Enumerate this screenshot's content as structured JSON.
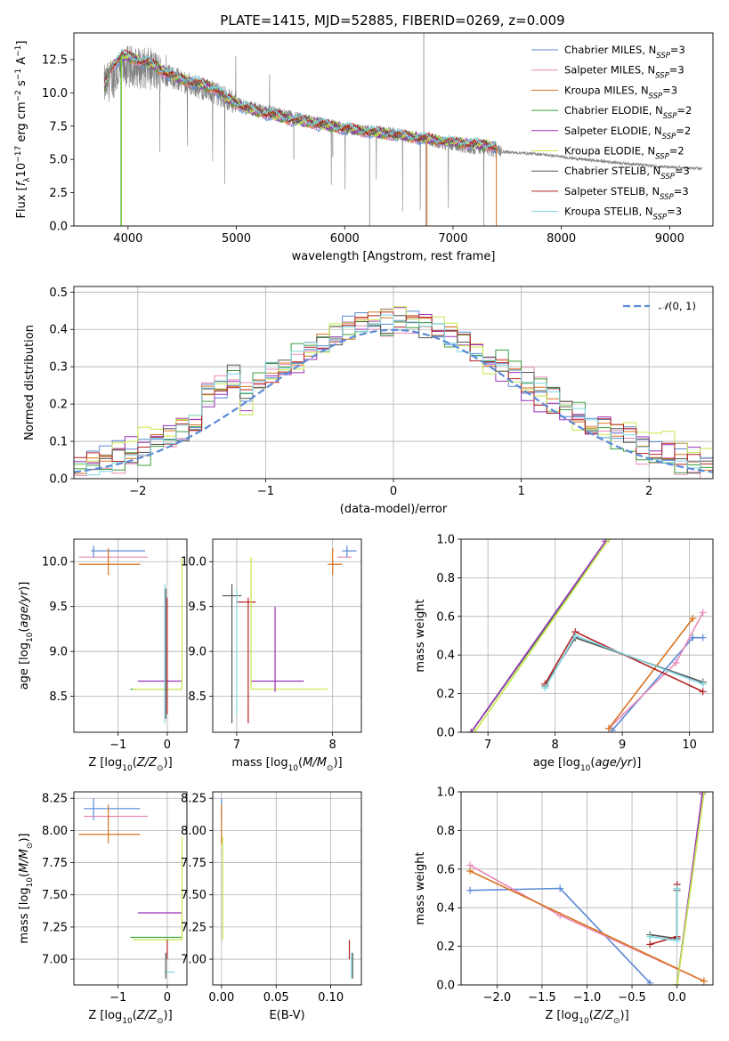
{
  "title": "PLATE=1415, MJD=52885, FIBERID=0269, z=0.009",
  "colors": {
    "Chabrier MILES": "#5b8bd6",
    "Salpeter MILES": "#e98ab8",
    "Kroupa MILES": "#d9731f",
    "Chabrier ELODIE": "#3f9f3f",
    "Salpeter ELODIE": "#9b30b8",
    "Kroupa ELODIE": "#c6e84a",
    "Chabrier STELIB": "#555555",
    "Salpeter STELIB": "#b22222",
    "Kroupa STELIB": "#7fd6e0",
    "data": "#808080",
    "normal": "#5b8bd6",
    "grid": "#b0b0b0"
  },
  "chart_data": [
    {
      "type": "line",
      "xlabel": "wavelength [Angstrom, rest frame]",
      "ylabel": "Flux [f_λ 10⁻¹⁷ erg cm⁻² s⁻¹ A⁻¹]",
      "ylabel_parts": {
        "pre": "Flux [",
        "f": "f",
        "sub": "λ",
        "mid": "10",
        "exp1": "−17",
        "rest": " erg cm",
        "exp2": "−2",
        "s": " s",
        "exp3": "−1",
        "A": " A",
        "exp4": "−1",
        "end": "]"
      },
      "xlim": [
        3500,
        9400
      ],
      "ylim": [
        0,
        14.5
      ],
      "xticks": [
        4000,
        5000,
        6000,
        7000,
        8000,
        9000
      ],
      "yticks": [
        0.0,
        2.5,
        5.0,
        7.5,
        10.0,
        12.5
      ],
      "legend_position": "upper-right",
      "legend": [
        {
          "model": "Chabrier MILES",
          "nssp": "3"
        },
        {
          "model": "Salpeter MILES",
          "nssp": "3"
        },
        {
          "model": "Kroupa MILES",
          "nssp": "3"
        },
        {
          "model": "Chabrier ELODIE",
          "nssp": "2"
        },
        {
          "model": "Salpeter ELODIE",
          "nssp": "2"
        },
        {
          "model": "Kroupa ELODIE",
          "nssp": "2"
        },
        {
          "model": "Chabrier STELIB",
          "nssp": "3"
        },
        {
          "model": "Salpeter STELIB",
          "nssp": "3"
        },
        {
          "model": "Kroupa STELIB",
          "nssp": "3"
        }
      ],
      "legend_label_prefix": ", N",
      "legend_label_sub": "SSP",
      "model_continuum": {
        "x": [
          3780,
          3850,
          3950,
          4050,
          4150,
          4250,
          4400,
          4600,
          4800,
          4900,
          5100,
          5300,
          5500,
          5800,
          6100,
          6400,
          6700,
          7000,
          7400
        ],
        "y": [
          10.5,
          12.0,
          12.8,
          12.6,
          12.3,
          12.0,
          11.3,
          10.8,
          10.4,
          9.6,
          8.8,
          8.4,
          8.0,
          7.6,
          7.2,
          6.9,
          6.6,
          6.3,
          6.0
        ]
      },
      "data_continuum": {
        "x": [
          3780,
          3900,
          4000,
          4200,
          4400,
          4800,
          5000,
          5500,
          6000,
          6500,
          7000,
          7400,
          7800,
          8200,
          8600,
          9000,
          9300
        ],
        "y": [
          10.5,
          11.5,
          12.0,
          11.8,
          11.2,
          10.0,
          9.2,
          8.2,
          7.3,
          6.9,
          6.1,
          5.6,
          5.4,
          5.0,
          4.7,
          4.4,
          4.3
        ]
      },
      "data_noise_region": [
        3780,
        7450
      ]
    },
    {
      "type": "step",
      "xlabel": "(data-model)/error",
      "ylabel": "Normed distribution",
      "xlim": [
        -2.5,
        2.5
      ],
      "ylim": [
        0,
        0.515
      ],
      "xticks": [
        -2,
        -1,
        0,
        1,
        2
      ],
      "yticks": [
        0.0,
        0.1,
        0.2,
        0.3,
        0.4,
        0.5
      ],
      "legend_position": "upper-right",
      "normal_label": "(0, 1)",
      "normal_label_script": "𝒩",
      "bin_width": 0.1,
      "bin_start": -2.5,
      "series": [
        {
          "name": "Chabrier MILES",
          "offset": 0.02
        },
        {
          "name": "Salpeter MILES",
          "offset": -0.015
        },
        {
          "name": "Kroupa MILES",
          "offset": 0.01
        },
        {
          "name": "Chabrier ELODIE",
          "offset": -0.02
        },
        {
          "name": "Salpeter ELODIE",
          "offset": 0.03
        },
        {
          "name": "Kroupa ELODIE",
          "offset": 0.04
        },
        {
          "name": "Chabrier STELIB",
          "offset": -0.005
        },
        {
          "name": "Salpeter STELIB",
          "offset": 0.015
        },
        {
          "name": "Kroupa STELIB",
          "offset": 0.0
        }
      ]
    },
    {
      "type": "errorbar",
      "xlabel": "Z [log₁₀(Z/Z⊙)]",
      "ylabel": "age [log₁₀(age/yr)]",
      "xlim": [
        -1.9,
        0.4
      ],
      "ylim": [
        8.1,
        10.25
      ],
      "xticks": [
        -1,
        0
      ],
      "yticks": [
        8.5,
        9.0,
        9.5,
        10.0
      ],
      "hbars": [
        {
          "y": 10.12,
          "x0": -1.55,
          "x1": -0.45,
          "c": "Chabrier MILES"
        },
        {
          "y": 10.05,
          "x0": -1.8,
          "x1": -0.4,
          "c": "Salpeter MILES"
        },
        {
          "y": 9.97,
          "x0": -1.8,
          "x1": -0.55,
          "c": "Kroupa MILES"
        },
        {
          "y": 8.67,
          "x0": -0.6,
          "x1": 0.3,
          "c": "Salpeter ELODIE"
        },
        {
          "y": 8.58,
          "x0": -0.75,
          "x1": 0.3,
          "c": "Chabrier ELODIE"
        },
        {
          "y": 8.58,
          "x0": -0.7,
          "x1": 0.3,
          "c": "Kroupa ELODIE"
        }
      ],
      "vbars": [
        {
          "x": -1.5,
          "y0": 10.05,
          "y1": 10.18,
          "c": "Chabrier MILES"
        },
        {
          "x": -1.2,
          "y0": 9.85,
          "y1": 10.15,
          "c": "Kroupa MILES"
        },
        {
          "x": -0.05,
          "y0": 8.2,
          "y1": 9.75,
          "c": "Kroupa STELIB"
        },
        {
          "x": -0.03,
          "y0": 8.25,
          "y1": 9.7,
          "c": "Chabrier STELIB"
        },
        {
          "x": 0.0,
          "y0": 8.3,
          "y1": 9.6,
          "c": "Salpeter STELIB"
        },
        {
          "x": 0.3,
          "y0": 8.58,
          "y1": 10.05,
          "c": "Kroupa ELODIE"
        }
      ]
    },
    {
      "type": "errorbar",
      "xlabel": "mass [log₁₀(M/M⊙)]",
      "ylabel": "",
      "xlim": [
        6.75,
        8.3
      ],
      "ylim": [
        8.1,
        10.25
      ],
      "xticks": [
        7,
        8
      ],
      "yticks": [
        8.5,
        9.0,
        9.5,
        10.0
      ],
      "hbars": [
        {
          "y": 9.62,
          "x0": 6.85,
          "x1": 7.05,
          "c": "Chabrier STELIB"
        },
        {
          "y": 9.55,
          "x0": 7.0,
          "x1": 7.2,
          "c": "Salpeter STELIB"
        },
        {
          "y": 8.67,
          "x0": 7.15,
          "x1": 7.7,
          "c": "Salpeter ELODIE"
        },
        {
          "y": 8.58,
          "x0": 7.15,
          "x1": 7.95,
          "c": "Kroupa ELODIE"
        },
        {
          "y": 10.12,
          "x0": 8.1,
          "x1": 8.25,
          "c": "Chabrier MILES"
        },
        {
          "y": 10.05,
          "x0": 8.05,
          "x1": 8.2,
          "c": "Salpeter MILES"
        },
        {
          "y": 9.97,
          "x0": 7.95,
          "x1": 8.1,
          "c": "Kroupa MILES"
        }
      ],
      "vbars": [
        {
          "x": 6.95,
          "y0": 8.2,
          "y1": 9.75,
          "c": "Chabrier STELIB"
        },
        {
          "x": 7.0,
          "y0": 8.3,
          "y1": 9.7,
          "c": "Kroupa STELIB"
        },
        {
          "x": 7.12,
          "y0": 8.2,
          "y1": 9.6,
          "c": "Salpeter STELIB"
        },
        {
          "x": 7.15,
          "y0": 8.58,
          "y1": 10.05,
          "c": "Kroupa ELODIE"
        },
        {
          "x": 7.4,
          "y0": 8.55,
          "y1": 9.5,
          "c": "Salpeter ELODIE"
        },
        {
          "x": 8.0,
          "y0": 9.85,
          "y1": 10.15,
          "c": "Kroupa MILES"
        },
        {
          "x": 8.15,
          "y0": 10.05,
          "y1": 10.18,
          "c": "Chabrier MILES"
        }
      ]
    },
    {
      "type": "line",
      "xlabel": "age [log₁₀(age/yr)]",
      "ylabel": "mass weight",
      "xlim": [
        6.6,
        10.35
      ],
      "ylim": [
        0,
        1.0
      ],
      "xticks": [
        7,
        8,
        9,
        10
      ],
      "yticks": [
        0.0,
        0.2,
        0.4,
        0.6,
        0.8,
        1.0
      ],
      "series": [
        {
          "name": "Chabrier MILES",
          "x": [
            8.85,
            10.05,
            10.2
          ],
          "y": [
            0.01,
            0.49,
            0.49
          ]
        },
        {
          "name": "Salpeter MILES",
          "x": [
            8.8,
            9.8,
            10.2
          ],
          "y": [
            0.02,
            0.36,
            0.62
          ]
        },
        {
          "name": "Kroupa MILES",
          "x": [
            8.8,
            10.05
          ],
          "y": [
            0.02,
            0.59
          ]
        },
        {
          "name": "Chabrier ELODIE",
          "x": [
            6.75,
            8.8
          ],
          "y": [
            0.0,
            1.0
          ]
        },
        {
          "name": "Salpeter ELODIE",
          "x": [
            6.75,
            8.75
          ],
          "y": [
            0.0,
            0.99
          ]
        },
        {
          "name": "Kroupa ELODIE",
          "x": [
            6.8,
            8.8
          ],
          "y": [
            0.0,
            1.0
          ]
        },
        {
          "name": "Chabrier STELIB",
          "x": [
            7.85,
            8.3,
            10.2
          ],
          "y": [
            0.24,
            0.49,
            0.26
          ]
        },
        {
          "name": "Salpeter STELIB",
          "x": [
            7.85,
            8.3,
            10.2
          ],
          "y": [
            0.25,
            0.52,
            0.21
          ]
        },
        {
          "name": "Kroupa STELIB",
          "x": [
            7.85,
            8.3,
            10.2
          ],
          "y": [
            0.23,
            0.5,
            0.25
          ]
        }
      ]
    },
    {
      "type": "errorbar",
      "xlabel": "Z [log₁₀(Z/Z⊙)]",
      "ylabel": "mass [log₁₀(M/M⊙)]",
      "xlim": [
        -1.9,
        0.4
      ],
      "ylim": [
        6.8,
        8.3
      ],
      "xticks": [
        -1,
        0
      ],
      "yticks": [
        7.0,
        7.25,
        7.5,
        7.75,
        8.0,
        8.25
      ],
      "hbars": [
        {
          "y": 8.17,
          "x0": -1.7,
          "x1": -0.55,
          "c": "Chabrier MILES"
        },
        {
          "y": 8.11,
          "x0": -1.7,
          "x1": -0.4,
          "c": "Salpeter MILES"
        },
        {
          "y": 7.97,
          "x0": -1.8,
          "x1": -0.55,
          "c": "Kroupa MILES"
        },
        {
          "y": 7.36,
          "x0": -0.6,
          "x1": 0.3,
          "c": "Salpeter ELODIE"
        },
        {
          "y": 7.17,
          "x0": -0.75,
          "x1": 0.3,
          "c": "Chabrier ELODIE"
        },
        {
          "y": 7.15,
          "x0": -0.7,
          "x1": 0.3,
          "c": "Kroupa ELODIE"
        },
        {
          "y": 6.9,
          "x0": -0.05,
          "x1": 0.15,
          "c": "Kroupa STELIB"
        }
      ],
      "vbars": [
        {
          "x": -1.5,
          "y0": 8.08,
          "y1": 8.25,
          "c": "Chabrier MILES"
        },
        {
          "x": -1.2,
          "y0": 7.9,
          "y1": 8.2,
          "c": "Kroupa MILES"
        },
        {
          "x": -0.03,
          "y0": 6.85,
          "y1": 7.05,
          "c": "Chabrier STELIB"
        },
        {
          "x": 0.0,
          "y0": 7.0,
          "y1": 7.15,
          "c": "Salpeter STELIB"
        },
        {
          "x": 0.3,
          "y0": 7.15,
          "y1": 7.95,
          "c": "Kroupa ELODIE"
        }
      ]
    },
    {
      "type": "errorbar",
      "xlabel": "E(B-V)",
      "ylabel": "",
      "xlim": [
        -0.008,
        0.128
      ],
      "ylim": [
        6.8,
        8.3
      ],
      "xticks": [
        0.0,
        0.05,
        0.1
      ],
      "tick_labels": [
        "0.00",
        "0.05",
        "0.10"
      ],
      "yticks": [
        7.0,
        7.25,
        7.5,
        7.75,
        8.0,
        8.25
      ],
      "hbars": [],
      "vbars": [
        {
          "x": 0.0,
          "y0": 8.08,
          "y1": 8.25,
          "c": "Chabrier MILES"
        },
        {
          "x": 0.0,
          "y0": 7.9,
          "y1": 8.2,
          "c": "Kroupa MILES"
        },
        {
          "x": 0.001,
          "y0": 7.15,
          "y1": 7.95,
          "c": "Kroupa ELODIE"
        },
        {
          "x": 0.117,
          "y0": 7.0,
          "y1": 7.15,
          "c": "Salpeter STELIB"
        },
        {
          "x": 0.119,
          "y0": 6.85,
          "y1": 7.05,
          "c": "Kroupa STELIB"
        },
        {
          "x": 0.12,
          "y0": 6.85,
          "y1": 7.05,
          "c": "Chabrier STELIB"
        }
      ]
    },
    {
      "type": "line",
      "xlabel": "Z [log₁₀(Z/Z⊙)]",
      "ylabel": "mass weight",
      "xlim": [
        -2.4,
        0.4
      ],
      "ylim": [
        0,
        1.0
      ],
      "xticks": [
        -2.0,
        -1.5,
        -1.0,
        -0.5,
        0.0
      ],
      "tick_labels": [
        "−2.0",
        "−1.5",
        "−1.0",
        "−0.5",
        "0.0"
      ],
      "yticks": [
        0.0,
        0.2,
        0.4,
        0.6,
        0.8,
        1.0
      ],
      "series": [
        {
          "name": "Chabrier MILES",
          "x": [
            -2.3,
            -1.3,
            -0.3
          ],
          "y": [
            0.49,
            0.5,
            0.01
          ]
        },
        {
          "name": "Salpeter MILES",
          "x": [
            -2.3,
            -1.3,
            0.3
          ],
          "y": [
            0.62,
            0.36,
            0.02
          ]
        },
        {
          "name": "Kroupa MILES",
          "x": [
            -2.3,
            0.3
          ],
          "y": [
            0.59,
            0.02
          ]
        },
        {
          "name": "Chabrier ELODIE",
          "x": [
            0.0,
            0.3
          ],
          "y": [
            0.0,
            1.0
          ]
        },
        {
          "name": "Salpeter ELODIE",
          "x": [
            0.0,
            0.28
          ],
          "y": [
            0.0,
            0.99
          ]
        },
        {
          "name": "Kroupa ELODIE",
          "x": [
            0.0,
            0.3
          ],
          "y": [
            0.0,
            1.0
          ]
        },
        {
          "name": "Chabrier STELIB",
          "x": [
            -0.3,
            0.0,
            0.0
          ],
          "y": [
            0.26,
            0.24,
            0.49
          ]
        },
        {
          "name": "Salpeter STELIB",
          "x": [
            -0.3,
            0.0,
            0.0
          ],
          "y": [
            0.21,
            0.25,
            0.52
          ]
        },
        {
          "name": "Kroupa STELIB",
          "x": [
            -0.3,
            0.0,
            0.0
          ],
          "y": [
            0.25,
            0.23,
            0.5
          ]
        }
      ]
    }
  ]
}
